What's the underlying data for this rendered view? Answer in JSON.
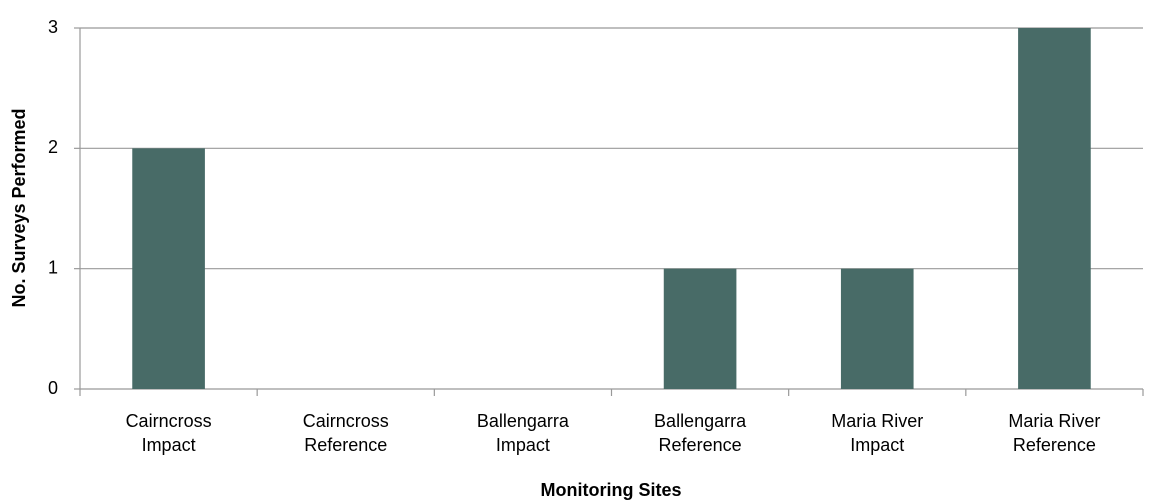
{
  "chart_data": {
    "type": "bar",
    "x_label": "Monitoring Sites",
    "y_label": "No. Surveys Performed",
    "categories": [
      "Cairncross Impact",
      "Cairncross Reference",
      "Ballengarra Impact",
      "Ballengarra Reference",
      "Maria River Impact",
      "Maria River Reference"
    ],
    "values": [
      2,
      0,
      0,
      1,
      1,
      3
    ],
    "color": "#486b67",
    "ylim": [
      0,
      3
    ],
    "yticks": [
      0,
      1,
      2,
      3
    ],
    "grid": true
  }
}
